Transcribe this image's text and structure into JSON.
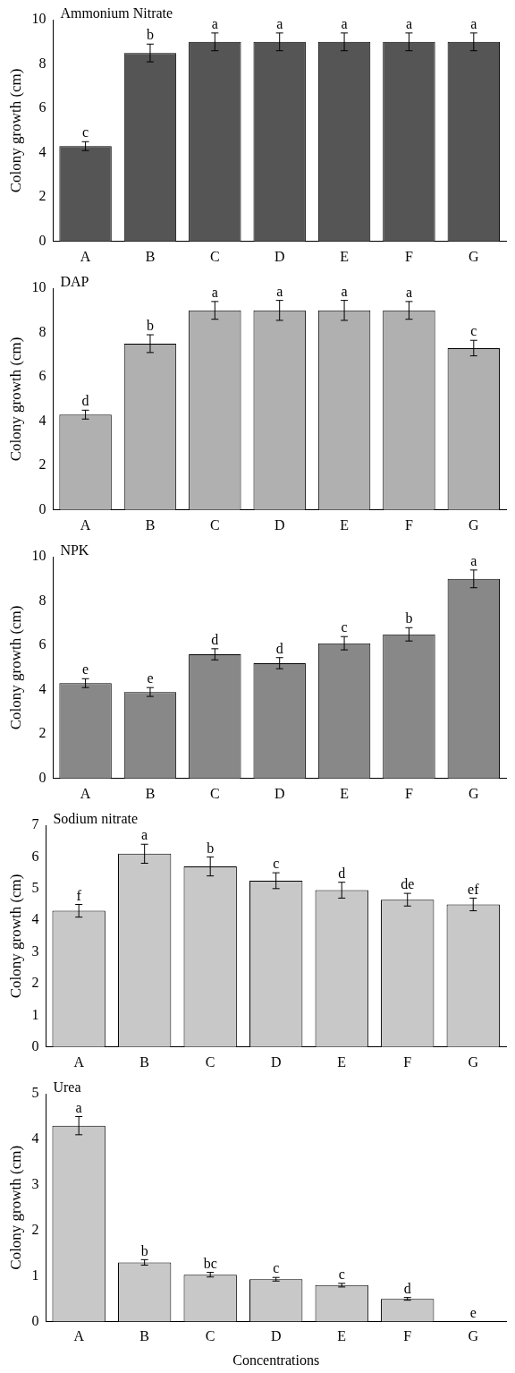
{
  "chart_data": [
    {
      "type": "bar",
      "title": "Ammonium Nitrate",
      "ylabel": "Colony growth (cm)",
      "categories": [
        "A",
        "B",
        "C",
        "D",
        "E",
        "F",
        "G"
      ],
      "color": "#555555",
      "values": [
        4.3,
        8.5,
        9,
        9,
        9,
        9,
        9
      ],
      "errors": [
        0.2,
        0.4,
        0.4,
        0.4,
        0.4,
        0.4,
        0.4
      ],
      "ylim": [
        0,
        10
      ],
      "yticks": [
        0,
        2,
        4,
        6,
        8,
        10
      ],
      "grid": false,
      "legend": false,
      "annotations": [
        {
          "text": "c",
          "x": "A",
          "y": 4.5
        },
        {
          "text": "b",
          "x": "B",
          "y": 8.9
        },
        {
          "text": "a",
          "x": "C",
          "y": 9.4
        },
        {
          "text": "a",
          "x": "D",
          "y": 9.4
        },
        {
          "text": "a",
          "x": "E",
          "y": 9.4
        },
        {
          "text": "a",
          "x": "F",
          "y": 9.4
        },
        {
          "text": "a",
          "x": "G",
          "y": 9.4
        }
      ]
    },
    {
      "type": "bar",
      "title": "DAP",
      "ylabel": "Colony growth (cm)",
      "categories": [
        "A",
        "B",
        "C",
        "D",
        "E",
        "F",
        "G"
      ],
      "color": "#b0b0b0",
      "values": [
        4.3,
        7.5,
        9,
        9,
        9,
        9,
        7.3
      ],
      "errors": [
        0.2,
        0.4,
        0.4,
        0.45,
        0.45,
        0.4,
        0.35
      ],
      "ylim": [
        0,
        10
      ],
      "yticks": [
        0,
        2,
        4,
        6,
        8,
        10
      ],
      "grid": false,
      "legend": false,
      "annotations": [
        {
          "text": "d",
          "x": "A",
          "y": 4.5
        },
        {
          "text": "b",
          "x": "B",
          "y": 7.9
        },
        {
          "text": "a",
          "x": "C",
          "y": 9.4
        },
        {
          "text": "a",
          "x": "D",
          "y": 9.45
        },
        {
          "text": "a",
          "x": "E",
          "y": 9.45
        },
        {
          "text": "a",
          "x": "F",
          "y": 9.4
        },
        {
          "text": "c",
          "x": "G",
          "y": 7.65
        }
      ]
    },
    {
      "type": "bar",
      "title": "NPK",
      "ylabel": "Colony growth (cm)",
      "categories": [
        "A",
        "B",
        "C",
        "D",
        "E",
        "F",
        "G"
      ],
      "color": "#888888",
      "values": [
        4.3,
        3.9,
        5.6,
        5.2,
        6.1,
        6.5,
        9
      ],
      "errors": [
        0.2,
        0.2,
        0.25,
        0.25,
        0.3,
        0.3,
        0.4
      ],
      "ylim": [
        0,
        10
      ],
      "yticks": [
        0,
        2,
        4,
        6,
        8,
        10
      ],
      "grid": false,
      "legend": false,
      "annotations": [
        {
          "text": "e",
          "x": "A",
          "y": 4.5
        },
        {
          "text": "e",
          "x": "B",
          "y": 4.1
        },
        {
          "text": "d",
          "x": "C",
          "y": 5.85
        },
        {
          "text": "d",
          "x": "D",
          "y": 5.45
        },
        {
          "text": "c",
          "x": "E",
          "y": 6.4
        },
        {
          "text": "b",
          "x": "F",
          "y": 6.8
        },
        {
          "text": "a",
          "x": "G",
          "y": 9.4
        }
      ]
    },
    {
      "type": "bar",
      "title": "Sodium nitrate",
      "ylabel": "Colony growth (cm)",
      "categories": [
        "A",
        "B",
        "C",
        "D",
        "E",
        "F",
        "G"
      ],
      "color": "#c8c8c8",
      "values": [
        4.3,
        6.1,
        5.7,
        5.25,
        4.95,
        4.65,
        4.5
      ],
      "errors": [
        0.2,
        0.3,
        0.3,
        0.25,
        0.25,
        0.2,
        0.2
      ],
      "ylim": [
        0,
        7
      ],
      "yticks": [
        0,
        1,
        2,
        3,
        4,
        5,
        6,
        7
      ],
      "grid": false,
      "legend": false,
      "annotations": [
        {
          "text": "f",
          "x": "A",
          "y": 4.5
        },
        {
          "text": "a",
          "x": "B",
          "y": 6.4
        },
        {
          "text": "b",
          "x": "C",
          "y": 6.0
        },
        {
          "text": "c",
          "x": "D",
          "y": 5.5
        },
        {
          "text": "d",
          "x": "E",
          "y": 5.2
        },
        {
          "text": "de",
          "x": "F",
          "y": 4.85
        },
        {
          "text": "ef",
          "x": "G",
          "y": 4.7
        }
      ]
    },
    {
      "type": "bar",
      "title": "Urea",
      "ylabel": "Colony growth (cm)",
      "xlabel": "Concentrations",
      "categories": [
        "A",
        "B",
        "C",
        "D",
        "E",
        "F",
        "G"
      ],
      "color": "#c8c8c8",
      "values": [
        4.3,
        1.3,
        1.03,
        0.93,
        0.8,
        0.5,
        0
      ],
      "errors": [
        0.2,
        0.06,
        0.05,
        0.04,
        0.04,
        0.03,
        null
      ],
      "ylim": [
        0,
        5
      ],
      "yticks": [
        0,
        1,
        2,
        3,
        4,
        5
      ],
      "grid": false,
      "legend": false,
      "annotations": [
        {
          "text": "a",
          "x": "A",
          "y": 4.5
        },
        {
          "text": "b",
          "x": "B",
          "y": 1.36
        },
        {
          "text": "bc",
          "x": "C",
          "y": 1.08
        },
        {
          "text": "c",
          "x": "D",
          "y": 0.97
        },
        {
          "text": "c",
          "x": "E",
          "y": 0.84
        },
        {
          "text": "d",
          "x": "F",
          "y": 0.53
        },
        {
          "text": "e",
          "x": "G",
          "y": 0
        }
      ]
    }
  ]
}
